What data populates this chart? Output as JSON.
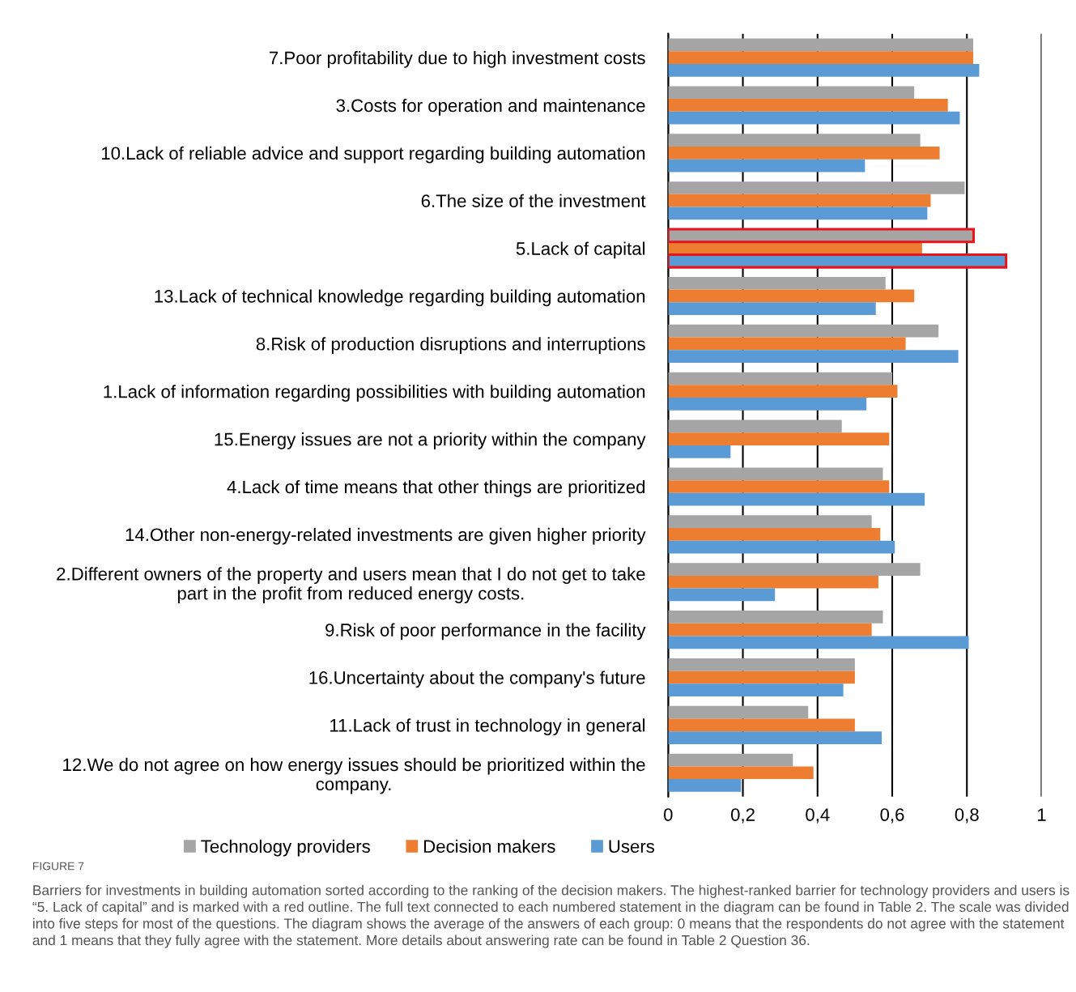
{
  "chart_data": {
    "type": "bar",
    "orientation": "horizontal",
    "title": "FIGURE 7",
    "categories": [
      "7.Poor profitability due to high investment costs",
      "3.Costs for operation and maintenance",
      "10.Lack of reliable advice and support regarding building automation",
      "6.The size of the investment",
      "5.Lack of capital",
      "13.Lack of technical knowledge regarding building automation",
      "8.Risk of production disruptions and interruptions",
      "1.Lack of information regarding possibilities with building automation",
      "15.Energy issues are not a priority within the company",
      "4.Lack of time means that other things are prioritized",
      "14.Other non-energy-related investments are given higher priority",
      "2.Different owners of the property and users mean that I do not get to take\npart in the profit from reduced energy costs.",
      "9.Risk of poor performance in the facility",
      "16.Uncertainty about the company's future",
      "11.Lack of trust in technology in general",
      "12.We do not agree on how energy issues should be prioritized within the\ncompany."
    ],
    "series": [
      {
        "name": "Technology providers",
        "color": "#a5a5a5",
        "values": [
          0.817,
          0.659,
          0.675,
          0.794,
          0.818,
          0.582,
          0.724,
          0.6,
          0.465,
          0.575,
          0.545,
          0.675,
          0.575,
          0.5,
          0.375,
          0.334
        ]
      },
      {
        "name": "Decision makers",
        "color": "#ed7d31",
        "values": [
          0.817,
          0.749,
          0.727,
          0.703,
          0.68,
          0.659,
          0.636,
          0.614,
          0.592,
          0.592,
          0.568,
          0.563,
          0.545,
          0.5,
          0.5,
          0.389
        ]
      },
      {
        "name": "Users",
        "color": "#5b9bd5",
        "values": [
          0.833,
          0.781,
          0.527,
          0.694,
          0.905,
          0.556,
          0.777,
          0.531,
          0.167,
          0.687,
          0.607,
          0.286,
          0.805,
          0.469,
          0.572,
          0.195
        ]
      }
    ],
    "xlim": [
      0,
      1
    ],
    "xticks": [
      0,
      {
        "value": 0.2,
        "label": "0,2"
      },
      {
        "value": 0.4,
        "label": "0,4"
      },
      {
        "value": 0.6,
        "label": "0,6"
      },
      {
        "value": 0.8,
        "label": "0,8"
      },
      1
    ],
    "grid": "x",
    "legend": "bottom",
    "annotations": [
      "Barriers for investments in building automation sorted according to the ranking of the decision makers. The highest-ranked barrier for technology providers and users is “5. Lack of capital” and is marked with a red outline. The full text connected to each numbered statement in the diagram can be found in Table 2. The scale was divided into five steps for most of the questions. The diagram shows the average of the answers of each group: 0 means that the respondents do not agree with the statement and 1 means that they fully agree with the statement. More details about answering rate can be found in Table 2 Question 36."
    ]
  }
}
